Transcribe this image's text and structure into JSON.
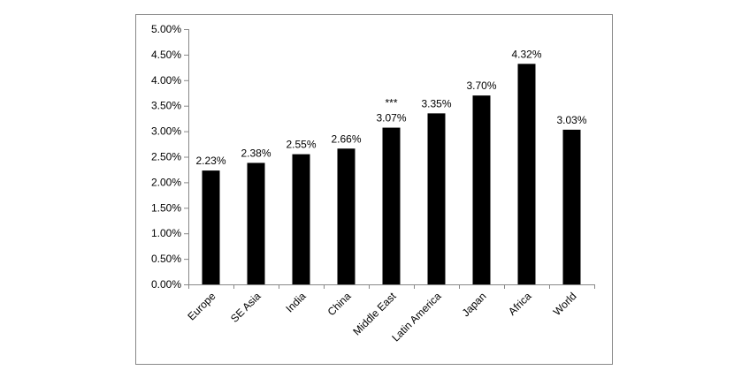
{
  "chart_data": {
    "type": "bar",
    "categories": [
      "Europe",
      "SE Asia",
      "India",
      "China",
      "Middle East",
      "Latin America",
      "Japan",
      "Africa",
      "World"
    ],
    "values": [
      2.23,
      2.38,
      2.55,
      2.66,
      3.07,
      3.35,
      3.7,
      4.32,
      3.03
    ],
    "value_labels": [
      "2.23%",
      "2.38%",
      "2.55%",
      "2.66%",
      "3.07%",
      "3.35%",
      "3.70%",
      "4.32%",
      "3.03%"
    ],
    "color": "#000000",
    "ylim": [
      0,
      5
    ],
    "yticks": [
      {
        "value": 0,
        "label": "0.00%"
      },
      {
        "value": 0.5,
        "label": "0.50%"
      },
      {
        "value": 1,
        "label": "1.00%"
      },
      {
        "value": 1.5,
        "label": "1.50%"
      },
      {
        "value": 2,
        "label": "2.00%"
      },
      {
        "value": 2.5,
        "label": "2.50%"
      },
      {
        "value": 3,
        "label": "3.00%"
      },
      {
        "value": 3.5,
        "label": "3.50%"
      },
      {
        "value": 4,
        "label": "4.00%"
      },
      {
        "value": 4.5,
        "label": "4.50%"
      },
      {
        "value": 5,
        "label": "5.00%"
      }
    ],
    "grid": false,
    "annotations": [
      {
        "text": "***",
        "category": "Middle East"
      }
    ]
  }
}
